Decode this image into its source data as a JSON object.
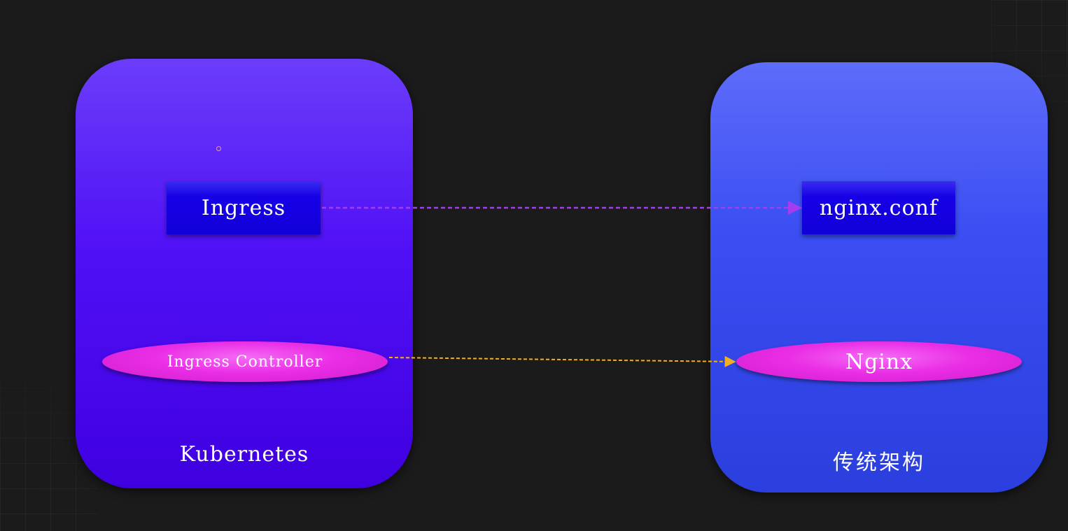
{
  "panels": {
    "kubernetes": {
      "label": "Kubernetes",
      "ingress": "Ingress",
      "controller": "Ingress Controller"
    },
    "traditional": {
      "label": "传统架构",
      "config": "nginx.conf",
      "server": "Nginx"
    }
  },
  "connectors": [
    {
      "from": "Ingress",
      "to": "nginx.conf",
      "style": "dashed",
      "color": "#a63cf0"
    },
    {
      "from": "Ingress Controller",
      "to": "Nginx",
      "style": "dashed",
      "color": "#f0b020"
    }
  ],
  "colors": {
    "background": "#1b1b1b",
    "kubernetes_panel": "#5010f5",
    "traditional_panel": "#3a4ef2",
    "rect_node": "#1600e6",
    "ellipse_node": "#ea2ee6"
  }
}
